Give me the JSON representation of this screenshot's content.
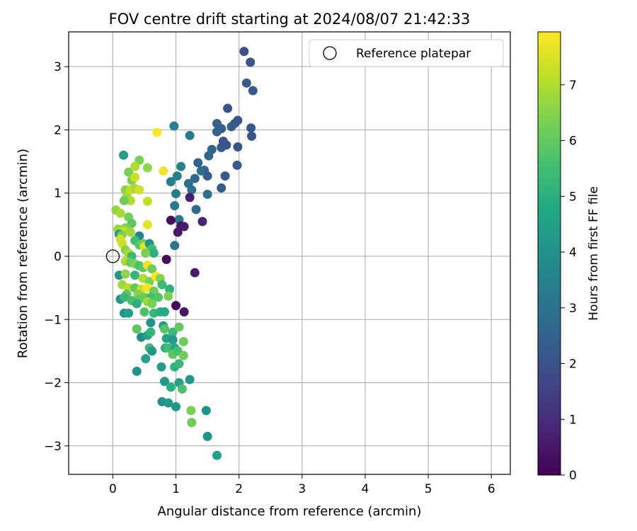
{
  "chart_data": {
    "type": "scatter",
    "title": "FOV centre drift starting at 2024/08/07 21:42:33",
    "xlabel": "Angular distance from reference (arcmin)",
    "ylabel": "Rotation from reference (arcmin)",
    "xlim": [
      -0.7,
      6.3
    ],
    "ylim": [
      -3.45,
      3.55
    ],
    "xticks": [
      0,
      1,
      2,
      3,
      4,
      5,
      6
    ],
    "yticks": [
      -3,
      -2,
      -1,
      0,
      1,
      2,
      3
    ],
    "grid": true,
    "legend": {
      "placement": "top-right",
      "entries": [
        "Reference platepar"
      ]
    },
    "reference_point": {
      "name": "Reference platepar",
      "x": 0,
      "y": 0
    },
    "colorbar": {
      "label": "Hours from first FF file",
      "colormap": "viridis",
      "range": [
        0,
        7.95
      ],
      "ticks": [
        0,
        1,
        2,
        3,
        4,
        5,
        6,
        7
      ]
    },
    "points": [
      [
        2.08,
        3.24,
        2.0
      ],
      [
        2.18,
        3.07,
        2.1
      ],
      [
        2.12,
        2.74,
        2.2
      ],
      [
        2.22,
        2.62,
        2.3
      ],
      [
        1.82,
        2.34,
        2.0
      ],
      [
        1.98,
        2.15,
        2.1
      ],
      [
        1.93,
        2.1,
        2.2
      ],
      [
        1.88,
        2.05,
        2.3
      ],
      [
        2.19,
        2.03,
        2.2
      ],
      [
        1.72,
        2.02,
        2.3
      ],
      [
        1.65,
        2.1,
        2.4
      ],
      [
        1.65,
        1.97,
        2.5
      ],
      [
        2.2,
        1.9,
        2.1
      ],
      [
        1.75,
        1.82,
        2.0
      ],
      [
        1.8,
        1.76,
        2.1
      ],
      [
        1.72,
        1.72,
        2.2
      ],
      [
        1.98,
        1.73,
        2.1
      ],
      [
        1.57,
        1.69,
        2.5
      ],
      [
        1.52,
        1.59,
        2.6
      ],
      [
        1.35,
        1.48,
        2.4
      ],
      [
        1.45,
        1.36,
        2.5
      ],
      [
        1.97,
        1.44,
        2.2
      ],
      [
        1.5,
        1.27,
        2.3
      ],
      [
        1.78,
        1.27,
        2.2
      ],
      [
        1.4,
        1.35,
        2.9
      ],
      [
        1.3,
        1.23,
        2.7
      ],
      [
        1.2,
        1.15,
        2.9
      ],
      [
        1.25,
        1.05,
        3.0
      ],
      [
        1.72,
        1.08,
        2.3
      ],
      [
        1.5,
        0.98,
        2.9
      ],
      [
        1.32,
        0.74,
        2.8
      ],
      [
        1.22,
        1.91,
        3.2
      ],
      [
        0.97,
        2.06,
        3.4
      ],
      [
        1.08,
        1.42,
        3.5
      ],
      [
        1.02,
        1.27,
        3.4
      ],
      [
        0.92,
        1.18,
        3.3
      ],
      [
        1.0,
        0.99,
        3.3
      ],
      [
        0.98,
        0.8,
        3.2
      ],
      [
        1.05,
        0.58,
        3.2
      ],
      [
        1.08,
        0.48,
        0.4
      ],
      [
        0.92,
        0.57,
        0.3
      ],
      [
        1.03,
        0.38,
        0.5
      ],
      [
        1.13,
        0.47,
        0.6
      ],
      [
        1.22,
        0.93,
        0.7
      ],
      [
        1.42,
        0.55,
        0.8
      ],
      [
        0.98,
        0.17,
        3.1
      ],
      [
        0.85,
        -0.05,
        0.2
      ],
      [
        1.3,
        -0.26,
        0.6
      ],
      [
        1.0,
        -0.78,
        0.2
      ],
      [
        1.13,
        -0.88,
        0.5
      ],
      [
        0.17,
        1.6,
        4.4
      ],
      [
        0.42,
        1.52,
        6.3
      ],
      [
        0.55,
        1.4,
        6.6
      ],
      [
        0.8,
        1.35,
        7.8
      ],
      [
        0.7,
        1.96,
        7.9
      ],
      [
        0.25,
        1.33,
        6.3
      ],
      [
        0.35,
        1.42,
        7.0
      ],
      [
        0.3,
        1.2,
        6.4
      ],
      [
        0.35,
        1.25,
        7.3
      ],
      [
        0.2,
        1.05,
        6.5
      ],
      [
        0.22,
        0.95,
        6.8
      ],
      [
        0.28,
        1.05,
        7.2
      ],
      [
        0.35,
        1.07,
        6.9
      ],
      [
        0.42,
        1.05,
        7.4
      ],
      [
        0.28,
        0.88,
        7.0
      ],
      [
        0.18,
        0.88,
        6.2
      ],
      [
        0.55,
        0.87,
        7.2
      ],
      [
        0.05,
        0.73,
        6.6
      ],
      [
        0.12,
        0.68,
        6.9
      ],
      [
        0.25,
        0.62,
        6.3
      ],
      [
        0.3,
        0.52,
        5.9
      ],
      [
        0.2,
        0.45,
        6.4
      ],
      [
        0.12,
        0.42,
        6.5
      ],
      [
        0.08,
        0.43,
        6.8
      ],
      [
        0.18,
        0.4,
        7.1
      ],
      [
        0.1,
        0.35,
        4.1
      ],
      [
        0.14,
        0.33,
        6.3
      ],
      [
        0.28,
        0.38,
        6.8
      ],
      [
        0.42,
        0.32,
        3.6
      ],
      [
        0.55,
        0.5,
        7.6
      ],
      [
        0.12,
        0.27,
        7.4
      ],
      [
        0.15,
        0.2,
        7.3
      ],
      [
        0.35,
        0.25,
        5.5
      ],
      [
        0.42,
        0.18,
        5.8
      ],
      [
        0.48,
        0.2,
        6.2
      ],
      [
        0.5,
        0.15,
        7.6
      ],
      [
        0.58,
        0.2,
        4.1
      ],
      [
        0.62,
        0.12,
        5.5
      ],
      [
        0.65,
        0.05,
        5.0
      ],
      [
        0.52,
        0.05,
        6.3
      ],
      [
        0.2,
        0.1,
        6.5
      ],
      [
        0.25,
        0.05,
        6.9
      ],
      [
        0.3,
        0.0,
        5.3
      ],
      [
        0.2,
        -0.08,
        7.0
      ],
      [
        0.28,
        -0.1,
        6.1
      ],
      [
        0.35,
        -0.12,
        6.4
      ],
      [
        0.42,
        -0.15,
        5.6
      ],
      [
        0.48,
        -0.18,
        5.9
      ],
      [
        0.55,
        -0.14,
        7.8
      ],
      [
        0.62,
        -0.2,
        6.2
      ],
      [
        0.1,
        -0.3,
        4.2
      ],
      [
        0.2,
        -0.28,
        6.6
      ],
      [
        0.35,
        -0.3,
        5.2
      ],
      [
        0.48,
        -0.35,
        7.0
      ],
      [
        0.58,
        -0.4,
        6.3
      ],
      [
        0.68,
        -0.32,
        7.9
      ],
      [
        0.75,
        -0.35,
        6.5
      ],
      [
        0.15,
        -0.45,
        6.8
      ],
      [
        0.25,
        -0.5,
        7.1
      ],
      [
        0.35,
        -0.5,
        6.0
      ],
      [
        0.45,
        -0.52,
        7.3
      ],
      [
        0.55,
        -0.5,
        7.9
      ],
      [
        0.65,
        -0.55,
        6.2
      ],
      [
        0.78,
        -0.45,
        5.4
      ],
      [
        0.9,
        -0.52,
        5.1
      ],
      [
        0.22,
        -0.6,
        5.9
      ],
      [
        0.4,
        -0.6,
        6.5
      ],
      [
        0.5,
        -0.65,
        6.1
      ],
      [
        0.6,
        -0.65,
        5.5
      ],
      [
        0.72,
        -0.65,
        5.8
      ],
      [
        0.88,
        -0.63,
        6.4
      ],
      [
        0.12,
        -0.68,
        4.0
      ],
      [
        0.18,
        -0.65,
        5.3
      ],
      [
        0.3,
        -0.7,
        5.6
      ],
      [
        0.42,
        -0.68,
        6.0
      ],
      [
        0.55,
        -0.72,
        6.8
      ],
      [
        0.62,
        -0.75,
        6.3
      ],
      [
        0.38,
        -0.75,
        5.0
      ],
      [
        0.18,
        -0.9,
        4.1
      ],
      [
        0.25,
        -0.9,
        4.6
      ],
      [
        0.5,
        -0.88,
        5.7
      ],
      [
        0.65,
        -0.9,
        5.3
      ],
      [
        0.75,
        -0.88,
        5.0
      ],
      [
        0.82,
        -0.88,
        4.8
      ],
      [
        0.6,
        -1.05,
        4.0
      ],
      [
        0.38,
        -1.15,
        5.9
      ],
      [
        0.45,
        -1.28,
        3.8
      ],
      [
        0.55,
        -1.25,
        4.6
      ],
      [
        0.6,
        -1.2,
        5.2
      ],
      [
        0.8,
        -1.1,
        4.4
      ],
      [
        0.82,
        -1.15,
        5.8
      ],
      [
        0.95,
        -1.2,
        5.3
      ],
      [
        1.05,
        -1.12,
        6.0
      ],
      [
        0.85,
        -1.3,
        4.6
      ],
      [
        0.95,
        -1.32,
        4.3
      ],
      [
        1.12,
        -1.35,
        6.2
      ],
      [
        0.83,
        -1.45,
        5.0
      ],
      [
        0.88,
        -1.45,
        5.5
      ],
      [
        0.98,
        -1.45,
        4.8
      ],
      [
        0.58,
        -1.45,
        5.4
      ],
      [
        0.62,
        -1.5,
        4.2
      ],
      [
        0.52,
        -1.62,
        4.6
      ],
      [
        0.38,
        -1.82,
        4.0
      ],
      [
        0.95,
        -1.55,
        5.9
      ],
      [
        1.03,
        -1.5,
        5.6
      ],
      [
        1.12,
        -1.57,
        6.2
      ],
      [
        0.77,
        -1.75,
        4.4
      ],
      [
        0.98,
        -1.75,
        5.1
      ],
      [
        1.05,
        -1.7,
        5.3
      ],
      [
        0.82,
        -1.98,
        4.3
      ],
      [
        0.92,
        -2.07,
        5.0
      ],
      [
        1.05,
        -2.0,
        4.6
      ],
      [
        1.1,
        -2.1,
        5.7
      ],
      [
        1.22,
        -1.95,
        4.2
      ],
      [
        0.78,
        -2.3,
        4.0
      ],
      [
        0.88,
        -2.32,
        4.3
      ],
      [
        1.0,
        -2.38,
        4.2
      ],
      [
        1.24,
        -2.44,
        6.3
      ],
      [
        1.48,
        -2.44,
        4.1
      ],
      [
        1.25,
        -2.63,
        6.2
      ],
      [
        1.5,
        -2.85,
        4.0
      ],
      [
        1.65,
        -3.15,
        4.5
      ]
    ]
  }
}
